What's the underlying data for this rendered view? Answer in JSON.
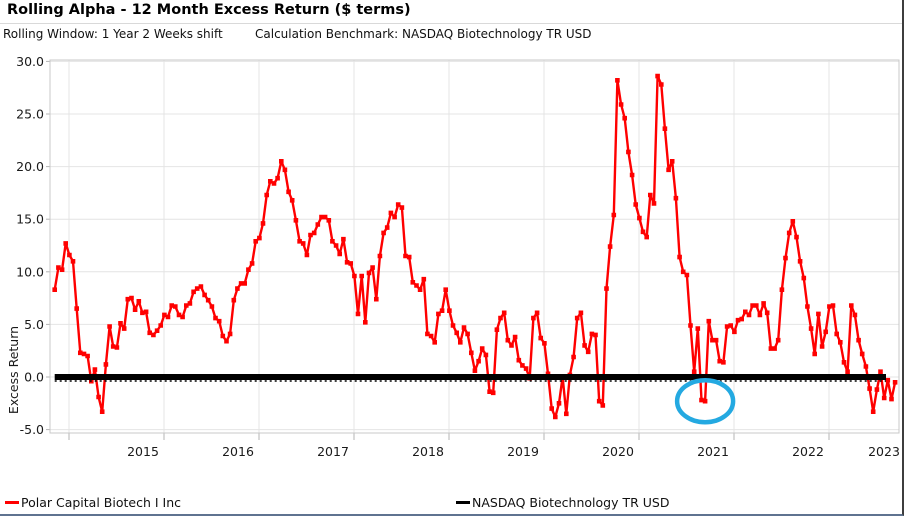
{
  "header": {
    "title": "Rolling Alpha - 12 Month Excess Return ($ terms)",
    "rolling_window_label": "Rolling Window: 1 Year 2 Weeks shift",
    "benchmark_label": "Calculation Benchmark: NASDAQ Biotechnology TR USD"
  },
  "legend": {
    "fund": {
      "label": "Polar Capital Biotech I Inc",
      "color": "#ff0000"
    },
    "benchmark": {
      "label": "NASDAQ Biotechnology TR USD",
      "color": "#000000"
    }
  },
  "chart_data": {
    "type": "line",
    "title": "Rolling Alpha - 12 Month Excess Return ($ terms)",
    "xlabel": "",
    "ylabel": "Excess Return",
    "ylim": [
      -5.3,
      30.1
    ],
    "grid": true,
    "y_ticks": [
      "30.0",
      "25.0",
      "20.0",
      "15.0",
      "10.0",
      "5.0",
      "0.0",
      "-5.0"
    ],
    "y_tick_values": [
      30,
      25,
      20,
      15,
      10,
      5,
      0,
      -5
    ],
    "x_tick_labels": [
      "2015",
      "2016",
      "2017",
      "2018",
      "2019",
      "2020",
      "2021",
      "2022",
      "2023"
    ],
    "series": [
      {
        "name": "Polar Capital Biotech I Inc",
        "color": "#ff0000",
        "marker": "square",
        "start_year": 2014.85,
        "step_years": 0.0384615,
        "values": [
          8.3,
          10.4,
          10.2,
          12.7,
          11.6,
          11.0,
          6.5,
          2.3,
          2.2,
          2.0,
          -0.4,
          0.7,
          -1.9,
          -3.3,
          1.2,
          4.8,
          2.9,
          2.8,
          5.1,
          4.6,
          7.4,
          7.5,
          6.4,
          7.2,
          6.1,
          6.2,
          4.2,
          4.0,
          4.4,
          4.9,
          5.9,
          5.7,
          6.8,
          6.7,
          5.9,
          5.7,
          6.8,
          7.0,
          8.1,
          8.4,
          8.6,
          7.8,
          7.3,
          6.7,
          5.6,
          5.3,
          3.9,
          3.4,
          4.1,
          7.3,
          8.4,
          8.9,
          8.9,
          10.2,
          10.8,
          12.9,
          13.2,
          14.6,
          17.3,
          18.6,
          18.4,
          18.9,
          20.5,
          19.7,
          17.6,
          16.8,
          14.9,
          12.9,
          12.7,
          11.6,
          13.5,
          13.7,
          14.5,
          15.2,
          15.2,
          14.9,
          12.9,
          12.5,
          11.7,
          13.1,
          10.9,
          10.8,
          9.6,
          6.0,
          9.6,
          5.2,
          9.9,
          10.4,
          7.4,
          11.5,
          13.7,
          14.2,
          15.6,
          15.2,
          16.4,
          16.1,
          11.5,
          11.4,
          9.0,
          8.7,
          8.3,
          9.3,
          4.1,
          3.9,
          3.3,
          6.0,
          6.3,
          8.3,
          6.3,
          4.9,
          4.2,
          3.3,
          4.7,
          4.1,
          2.3,
          0.6,
          1.5,
          2.7,
          2.1,
          -1.4,
          -1.5,
          4.5,
          5.6,
          6.1,
          3.5,
          3.0,
          3.8,
          1.6,
          1.1,
          0.8,
          -0.1,
          5.6,
          6.1,
          3.7,
          3.2,
          0.3,
          -3.0,
          -3.8,
          -2.5,
          0.0,
          -3.5,
          0.2,
          1.9,
          5.6,
          6.1,
          3.0,
          2.4,
          4.1,
          4.0,
          -2.3,
          -2.7,
          8.4,
          12.4,
          15.4,
          28.2,
          25.9,
          24.6,
          21.4,
          19.2,
          16.4,
          15.1,
          13.8,
          13.3,
          17.3,
          16.5,
          28.6,
          27.8,
          23.6,
          19.7,
          20.5,
          17.0,
          11.4,
          10.0,
          9.7,
          4.9,
          0.5,
          4.6,
          -2.2,
          -2.3,
          5.3,
          3.5,
          3.5,
          1.5,
          1.4,
          4.8,
          4.9,
          4.3,
          5.4,
          5.5,
          6.2,
          5.9,
          6.8,
          6.8,
          5.9,
          7.0,
          6.1,
          2.7,
          2.7,
          3.5,
          8.3,
          11.3,
          13.7,
          14.8,
          13.3,
          11.0,
          9.4,
          6.7,
          4.6,
          2.2,
          6.0,
          2.9,
          4.3,
          6.7,
          6.8,
          4.1,
          3.3,
          1.4,
          0.5,
          6.8,
          5.9,
          3.5,
          2.2,
          1.0,
          -1.1,
          -3.3,
          -1.2,
          0.5,
          -2.0,
          -0.3,
          -2.1,
          -0.5
        ]
      },
      {
        "name": "NASDAQ Biotechnology TR USD",
        "color": "#000000",
        "start_year": 2014.85,
        "end_year": 2023.6,
        "constant_value": 0.0
      }
    ],
    "annotation": {
      "type": "ellipse",
      "x_year": 2021.696,
      "y_value": -2.3,
      "color": "#24a9e1",
      "note": "circled negative alpha point"
    }
  }
}
